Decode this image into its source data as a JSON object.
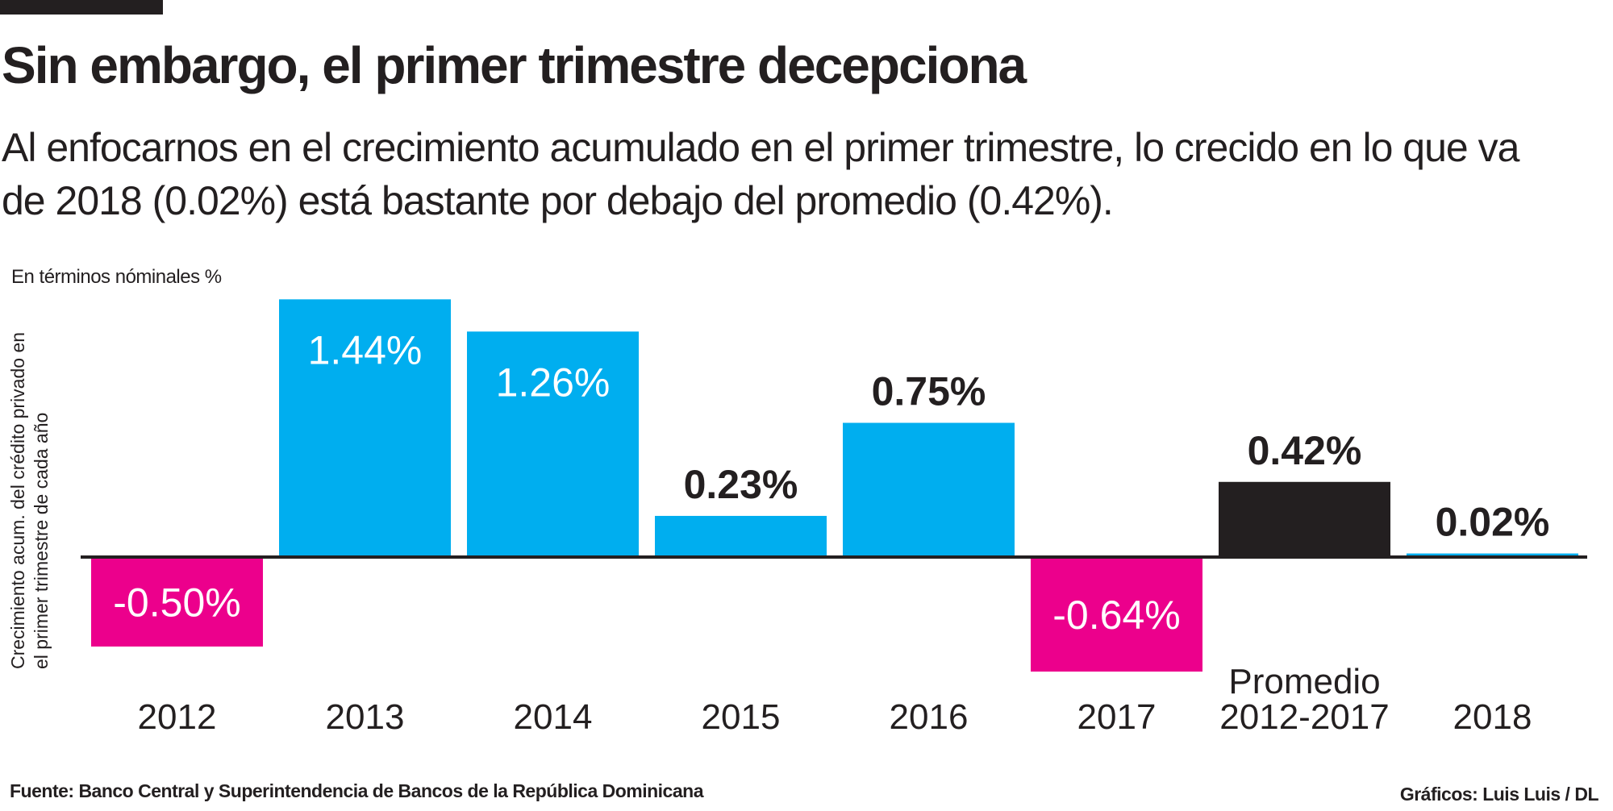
{
  "title": "Sin embargo, el primer trimestre decepciona",
  "subtitle": "Al enfocarnos en el crecimiento acumulado en el primer trimestre, lo crecido en lo que va de 2018 (0.02%) está bastante por debajo del promedio (0.42%).",
  "source": "Fuente: Banco Central y Superintendencia de Bancos de la República Dominicana",
  "credit": "Gráficos: Luis Luis / DL",
  "chart_data": {
    "type": "bar",
    "unit_label": "En términos nóminales %",
    "ylabel": "Crecimiento acum. del crédito privado en el primer trimestre de cada año",
    "categories": [
      "2012",
      "2013",
      "2014",
      "2015",
      "2016",
      "2017",
      "Promedio 2012-2017",
      "2018"
    ],
    "category_lines": [
      [
        "2012"
      ],
      [
        "2013"
      ],
      [
        "2014"
      ],
      [
        "2015"
      ],
      [
        "2016"
      ],
      [
        "2017"
      ],
      [
        "Promedio",
        "2012-2017"
      ],
      [
        "2018"
      ]
    ],
    "values": [
      -0.5,
      1.44,
      1.26,
      0.23,
      0.75,
      -0.64,
      0.42,
      0.02
    ],
    "data_labels": [
      "-0.50%",
      "1.44%",
      "1.26%",
      "0.23%",
      "0.75%",
      "-0.64%",
      "0.42%",
      "0.02%"
    ],
    "colors": {
      "positive": "#00aeef",
      "negative": "#ec008c",
      "average": "#231f20",
      "axis": "#231f20"
    },
    "grid": false,
    "legend": "none"
  }
}
